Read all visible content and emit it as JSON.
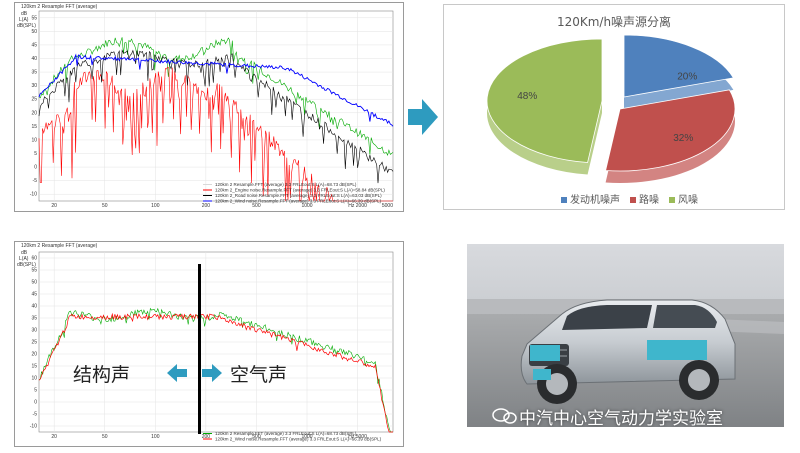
{
  "top_fft": {
    "title": "120km 2 Resample FFT (average)",
    "ylabel_top": "dB",
    "ylabel_unit": "L(A)",
    "ylabel_ref": "dB(SPL)",
    "y_ticks": [
      "55",
      "50",
      "45",
      "40",
      "35",
      "30",
      "25",
      "20",
      "15",
      "10",
      "5",
      "0",
      "-5",
      "-10"
    ],
    "x_ticks": [
      "20",
      "50",
      "100",
      "200",
      "500",
      "1000",
      "Hz 2000"
    ],
    "x_end_label": "5000",
    "legend": [
      {
        "text": "120km 2 Resample.FFT (average) 3.3 FRLEout:S L(A)=68.73 dB(SPL)",
        "color": "#d9d9d9"
      },
      {
        "text": "120km 2_Engine noise.Resample.FFT (average) 3.3 FRLEout:S L(A)=58.84 dB(SPL)",
        "color": "#ff0000"
      },
      {
        "text": "120km 2_Road noise.Resample.FFT (average) 3.3 FRLEout:S L(A)=63.03 dB(SPL)",
        "color": "#000000"
      },
      {
        "text": "120km 2_Wind noise.Resample.FFT (average) 3.3 FRLEout:S L(A)=66.39 dB(SPL)",
        "color": "#0000ff"
      }
    ]
  },
  "pie": {
    "title": "120Km/h噪声源分离",
    "slices": [
      {
        "label": "发动机噪声",
        "percent": "20%",
        "value": 20,
        "color": "#4f81bd"
      },
      {
        "label": "路噪",
        "percent": "32%",
        "value": 32,
        "color": "#c0504d"
      },
      {
        "label": "风噪",
        "percent": "48%",
        "value": 48,
        "color": "#9bbb59"
      }
    ]
  },
  "bottom_fft": {
    "title": "120km 2 Resample FFT (average)",
    "ylabel_top": "dB",
    "ylabel_unit": "L(A)",
    "ylabel_ref": "dB(SPL)",
    "y_ticks": [
      "60",
      "55",
      "50",
      "45",
      "40",
      "35",
      "30",
      "25",
      "20",
      "15",
      "10",
      "5",
      "0",
      "-5",
      "-10"
    ],
    "x_ticks": [
      "20",
      "50",
      "100",
      "200",
      "500",
      "1000",
      "Hz 5000"
    ],
    "legend": [
      {
        "text": "120km 2 Resample.FFT (average) 3.3 FRLEout:S L(A)=68.73 dB(SPL)",
        "color": "#00aa00"
      },
      {
        "text": "120km 2_Wind noise.Resample.FFT (average) 3.3 FRLEout:S L(A)=66.39 dB(SPL)",
        "color": "#ff0000"
      }
    ],
    "left_label": "结构声",
    "right_label": "空气声"
  },
  "photo": {
    "watermark": "中汽中心空气动力学实验室"
  },
  "colors": {
    "arrow": "#2e9bbf",
    "sticker": "#3fb6cc"
  }
}
